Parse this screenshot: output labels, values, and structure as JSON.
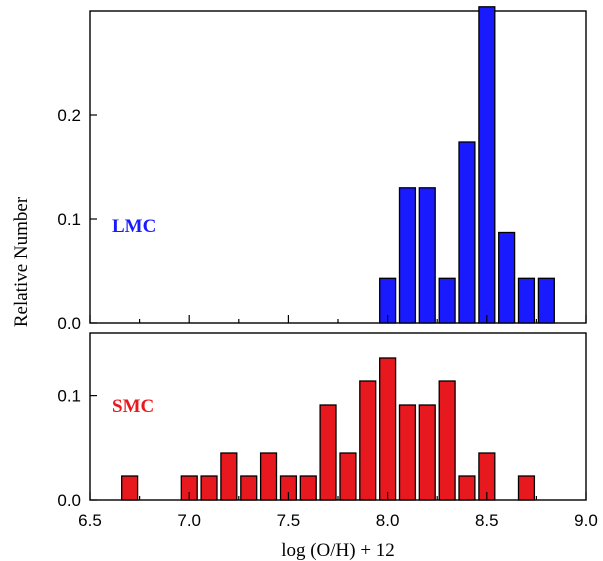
{
  "chart_data": [
    {
      "type": "bar",
      "panel": "top",
      "label": "LMC",
      "color": "#1a1aff",
      "xlim": [
        6.5,
        9.0
      ],
      "ylim": [
        0.0,
        0.3
      ],
      "yticks": [
        "0.0",
        "0.1",
        "0.2"
      ],
      "ytick_values": [
        0.0,
        0.1,
        0.2
      ],
      "x": [
        8.0,
        8.1,
        8.2,
        8.3,
        8.4,
        8.5,
        8.6,
        8.7,
        8.8
      ],
      "values": [
        0.043,
        0.13,
        0.13,
        0.043,
        0.174,
        0.304,
        0.087,
        0.043,
        0.043
      ]
    },
    {
      "type": "bar",
      "panel": "bottom",
      "label": "SMC",
      "color": "#e8191e",
      "xlim": [
        6.5,
        9.0
      ],
      "ylim": [
        0.0,
        0.16
      ],
      "yticks": [
        "0.0",
        "0.1"
      ],
      "ytick_values": [
        0.0,
        0.1
      ],
      "x": [
        6.7,
        7.0,
        7.1,
        7.2,
        7.3,
        7.4,
        7.5,
        7.6,
        7.7,
        7.8,
        7.9,
        8.0,
        8.1,
        8.2,
        8.3,
        8.4,
        8.5,
        8.7
      ],
      "values": [
        0.023,
        0.023,
        0.023,
        0.045,
        0.023,
        0.045,
        0.023,
        0.023,
        0.091,
        0.045,
        0.114,
        0.136,
        0.091,
        0.091,
        0.114,
        0.023,
        0.045,
        0.023
      ]
    }
  ],
  "axes": {
    "xlabel": "log (O/H) + 12",
    "ylabel": "Relative Number",
    "xticks": [
      "6.5",
      "7.0",
      "7.5",
      "8.0",
      "8.5",
      "9.0"
    ],
    "xtick_values": [
      6.5,
      7.0,
      7.5,
      8.0,
      8.5,
      9.0
    ],
    "bar_width": 0.08
  }
}
